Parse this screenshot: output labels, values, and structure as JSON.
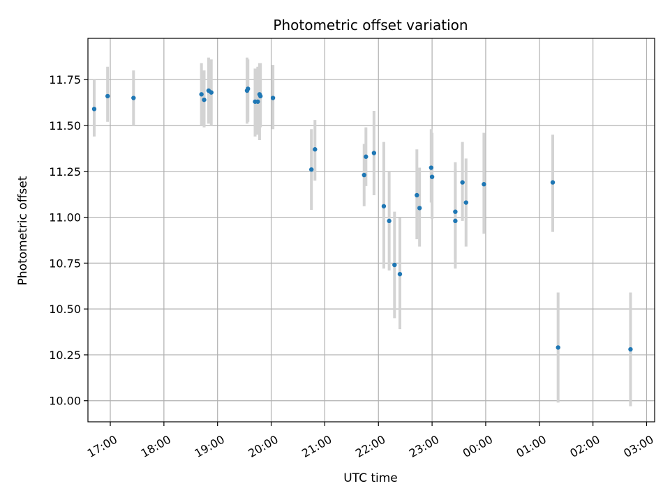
{
  "chart_data": {
    "type": "scatter",
    "title": "Photometric offset variation",
    "xlabel": "UTC time",
    "ylabel": "Photometric offset",
    "ylim": [
      9.885,
      11.975
    ],
    "xlim": [
      "16:35",
      "03:09 (+1 day)"
    ],
    "grid": true,
    "legend": "none",
    "colors": {
      "point": "#1f77b4",
      "errorbar": "#d3d3d3",
      "grid": "#b0b0b0"
    },
    "x_ticks": [
      "17:00",
      "18:00",
      "19:00",
      "20:00",
      "21:00",
      "22:00",
      "23:00",
      "00:00",
      "01:00",
      "02:00",
      "03:00"
    ],
    "y_ticks": [
      "10.00",
      "10.25",
      "10.50",
      "10.75",
      "11.00",
      "11.25",
      "11.50",
      "11.75"
    ],
    "points": [
      {
        "x": "16:42",
        "y": 11.59,
        "low": 11.44,
        "high": 11.75
      },
      {
        "x": "16:57",
        "y": 11.66,
        "low": 11.52,
        "high": 11.82
      },
      {
        "x": "17:26",
        "y": 11.65,
        "low": 11.5,
        "high": 11.8
      },
      {
        "x": "18:42",
        "y": 11.67,
        "low": 11.5,
        "high": 11.84
      },
      {
        "x": "18:45",
        "y": 11.64,
        "low": 11.49,
        "high": 11.8
      },
      {
        "x": "18:50",
        "y": 11.69,
        "low": 11.51,
        "high": 11.87
      },
      {
        "x": "18:53",
        "y": 11.68,
        "low": 11.5,
        "high": 11.86
      },
      {
        "x": "19:33",
        "y": 11.69,
        "low": 11.51,
        "high": 11.87
      },
      {
        "x": "19:34",
        "y": 11.7,
        "low": 11.52,
        "high": 11.86
      },
      {
        "x": "19:42",
        "y": 11.63,
        "low": 11.44,
        "high": 11.81
      },
      {
        "x": "19:45",
        "y": 11.63,
        "low": 11.45,
        "high": 11.82
      },
      {
        "x": "19:47",
        "y": 11.67,
        "low": 11.42,
        "high": 11.84
      },
      {
        "x": "19:48",
        "y": 11.66,
        "low": 11.49,
        "high": 11.84
      },
      {
        "x": "20:02",
        "y": 11.65,
        "low": 11.48,
        "high": 11.83
      },
      {
        "x": "20:45",
        "y": 11.26,
        "low": 11.04,
        "high": 11.48
      },
      {
        "x": "20:49",
        "y": 11.37,
        "low": 11.2,
        "high": 11.53
      },
      {
        "x": "21:44",
        "y": 11.23,
        "low": 11.06,
        "high": 11.4
      },
      {
        "x": "21:46",
        "y": 11.33,
        "low": 11.17,
        "high": 11.49
      },
      {
        "x": "21:55",
        "y": 11.35,
        "low": 11.12,
        "high": 11.58
      },
      {
        "x": "22:06",
        "y": 11.06,
        "low": 10.72,
        "high": 11.41
      },
      {
        "x": "22:12",
        "y": 10.98,
        "low": 10.71,
        "high": 11.25
      },
      {
        "x": "22:18",
        "y": 10.74,
        "low": 10.45,
        "high": 11.03
      },
      {
        "x": "22:24",
        "y": 10.69,
        "low": 10.39,
        "high": 11.0
      },
      {
        "x": "22:43",
        "y": 11.12,
        "low": 10.88,
        "high": 11.37
      },
      {
        "x": "22:46",
        "y": 11.05,
        "low": 10.84,
        "high": 11.27
      },
      {
        "x": "22:59",
        "y": 11.27,
        "low": 11.08,
        "high": 11.48
      },
      {
        "x": "23:00",
        "y": 11.22,
        "low": 10.99,
        "high": 11.46
      },
      {
        "x": "23:26",
        "y": 11.03,
        "low": 10.77,
        "high": 11.3
      },
      {
        "x": "23:26",
        "y": 10.98,
        "low": 10.72,
        "high": 11.26
      },
      {
        "x": "23:34",
        "y": 11.19,
        "low": 10.98,
        "high": 11.41
      },
      {
        "x": "23:38",
        "y": 11.08,
        "low": 10.84,
        "high": 11.32
      },
      {
        "x": "23:58",
        "y": 11.18,
        "low": 10.91,
        "high": 11.46
      },
      {
        "x": "01:15",
        "y": 11.19,
        "low": 10.92,
        "high": 11.45
      },
      {
        "x": "01:21",
        "y": 10.29,
        "low": 9.99,
        "high": 10.59
      },
      {
        "x": "02:42",
        "y": 10.28,
        "low": 9.97,
        "high": 10.59
      }
    ]
  }
}
